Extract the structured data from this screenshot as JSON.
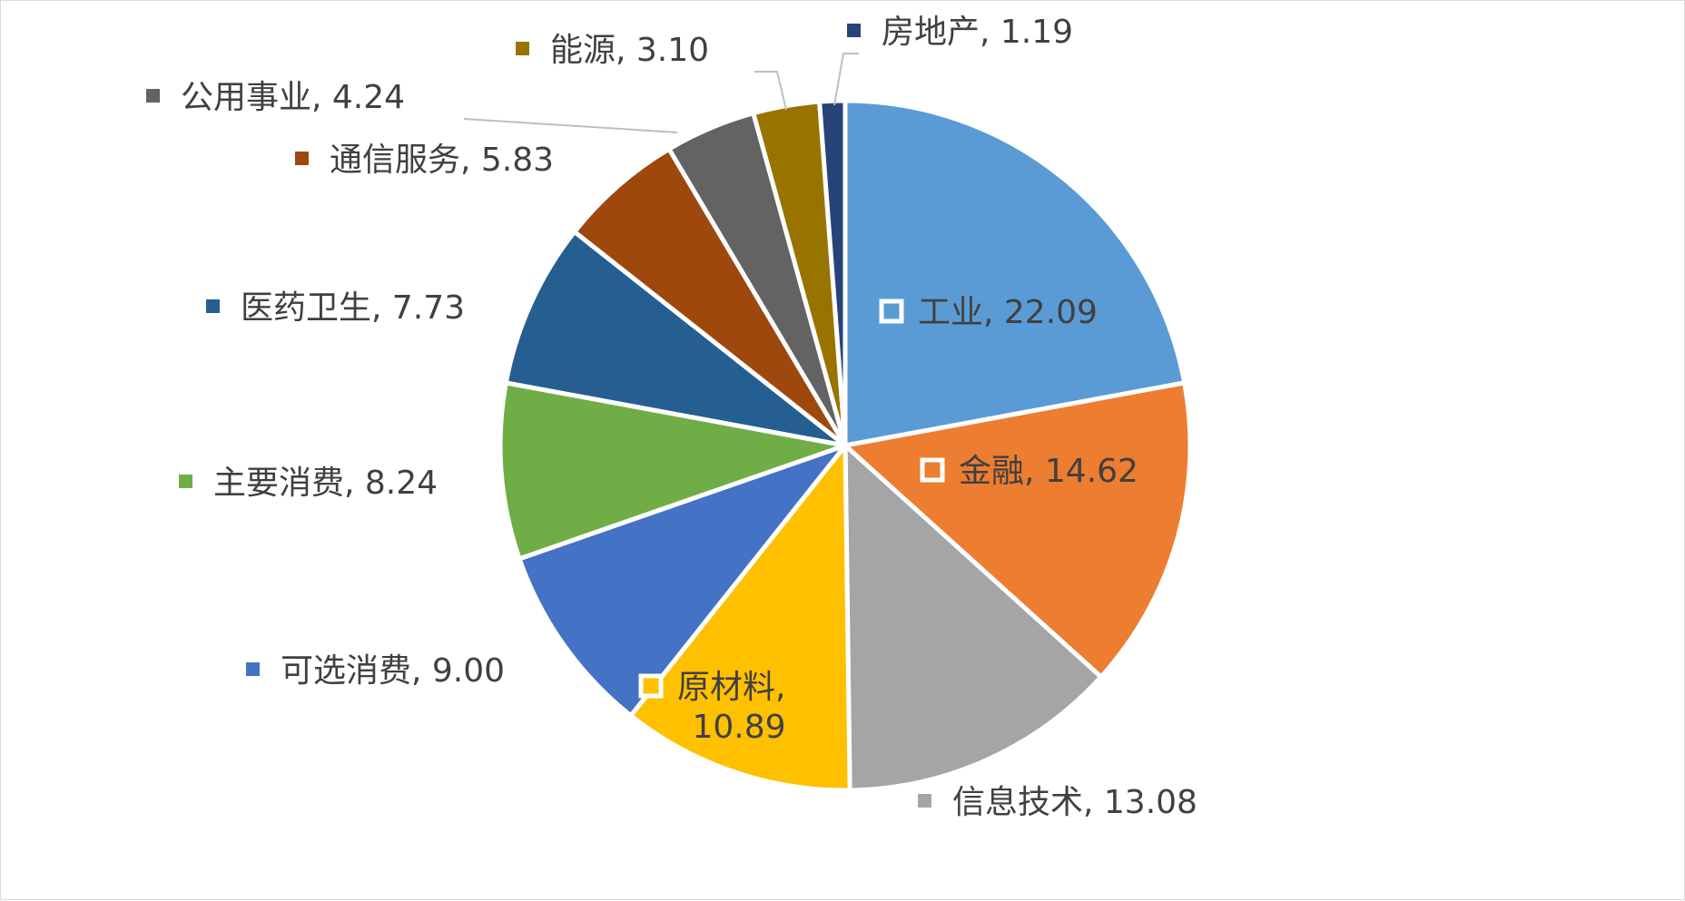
{
  "chart_data": {
    "type": "pie",
    "title": "",
    "start_angle_deg": 0,
    "direction": "clockwise",
    "slices": [
      {
        "label": "工业",
        "value": 22.09,
        "display": "22.09",
        "color": "#5B9BD5"
      },
      {
        "label": "金融",
        "value": 14.62,
        "display": "14.62",
        "color": "#ED7D31"
      },
      {
        "label": "信息技术",
        "value": 13.08,
        "display": "13.08",
        "color": "#A5A5A5"
      },
      {
        "label": "原材料",
        "value": 10.89,
        "display": "10.89",
        "color": "#FFC000"
      },
      {
        "label": "可选消费",
        "value": 9.0,
        "display": "9.00",
        "color": "#4472C4"
      },
      {
        "label": "主要消费",
        "value": 8.24,
        "display": "8.24",
        "color": "#70AD47"
      },
      {
        "label": "医药卫生",
        "value": 7.73,
        "display": "7.73",
        "color": "#255E91"
      },
      {
        "label": "通信服务",
        "value": 5.83,
        "display": "5.83",
        "color": "#9E480E"
      },
      {
        "label": "公用事业",
        "value": 4.24,
        "display": "4.24",
        "color": "#636363"
      },
      {
        "label": "能源",
        "value": 3.1,
        "display": "3.10",
        "color": "#997300"
      },
      {
        "label": "房地产",
        "value": 1.19,
        "display": "1.19",
        "color": "#264478"
      }
    ],
    "legend": "none",
    "data_labels": "category, value"
  }
}
